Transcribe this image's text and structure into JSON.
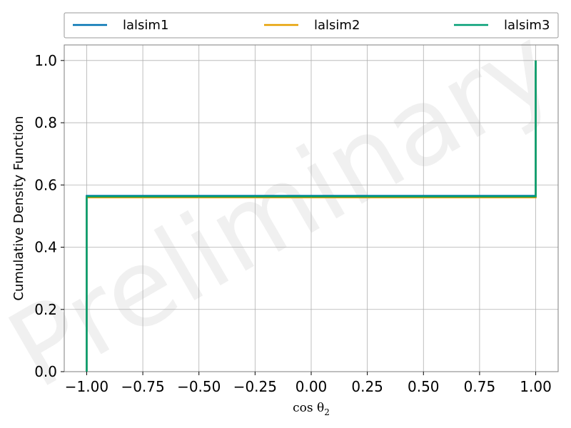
{
  "chart_data": {
    "type": "line",
    "xlabel": "cos θ",
    "xlabel_subscript": "2",
    "ylabel": "Cumulative Density Function",
    "xlim": [
      -1.1,
      1.1
    ],
    "ylim": [
      0,
      1.05
    ],
    "xticks": [
      -1.0,
      -0.75,
      -0.5,
      -0.25,
      0.0,
      0.25,
      0.5,
      0.75,
      1.0
    ],
    "xtick_labels": [
      "−1.00",
      "−0.75",
      "−0.50",
      "−0.25",
      "0.00",
      "0.25",
      "0.50",
      "0.75",
      "1.00"
    ],
    "yticks": [
      0.0,
      0.2,
      0.4,
      0.6,
      0.8,
      1.0
    ],
    "ytick_labels": [
      "0.0",
      "0.2",
      "0.4",
      "0.6",
      "0.8",
      "1.0"
    ],
    "grid": true,
    "legend_position": "top, above plot, 3 columns",
    "watermark": "Preliminary",
    "series": [
      {
        "name": "lalsim1",
        "color": "#0072b2",
        "x": [
          -1.0,
          -1.0,
          1.0,
          1.0
        ],
        "y": [
          0.0,
          0.565,
          0.565,
          1.0
        ]
      },
      {
        "name": "lalsim2",
        "color": "#e69f00",
        "x": [
          -1.0,
          -1.0,
          1.0,
          1.0
        ],
        "y": [
          0.0,
          0.56,
          0.56,
          1.0
        ]
      },
      {
        "name": "lalsim3",
        "color": "#009e73",
        "x": [
          -1.0,
          -1.0,
          1.0,
          1.0
        ],
        "y": [
          0.0,
          0.563,
          0.563,
          1.0
        ]
      }
    ]
  }
}
